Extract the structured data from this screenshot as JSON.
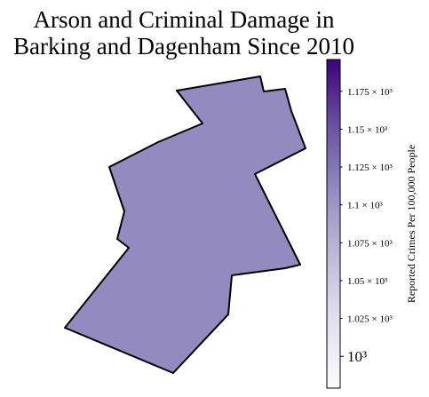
{
  "chart_data": {
    "type": "choropleth",
    "title_lines": [
      "Arson and Criminal Damage in",
      "Barking and Dagenham Since 2010"
    ],
    "regions": [
      {
        "name": "Barking and Dagenham",
        "value": 1110
      }
    ],
    "colorbar": {
      "label": "Reported Crimes Per 100,000 People",
      "range": [
        979,
        1196
      ],
      "colormap": [
        "#fcfbfd",
        "#dadaeb",
        "#9e9ac8",
        "#6a51a3",
        "#3f007d"
      ],
      "ticks": [
        {
          "value": 1000,
          "label": "10³",
          "major": true
        },
        {
          "value": 1025,
          "label": "1.025 × 10³",
          "major": false
        },
        {
          "value": 1050,
          "label": "1.05 × 10³",
          "major": false
        },
        {
          "value": 1075,
          "label": "1.075 × 10³",
          "major": false
        },
        {
          "value": 1100,
          "label": "1.1 × 10³",
          "major": false
        },
        {
          "value": 1125,
          "label": "1.125 × 10³",
          "major": false
        },
        {
          "value": 1150,
          "label": "1.15 × 10³",
          "major": false
        },
        {
          "value": 1175,
          "label": "1.175 × 10³",
          "major": false
        }
      ]
    }
  }
}
